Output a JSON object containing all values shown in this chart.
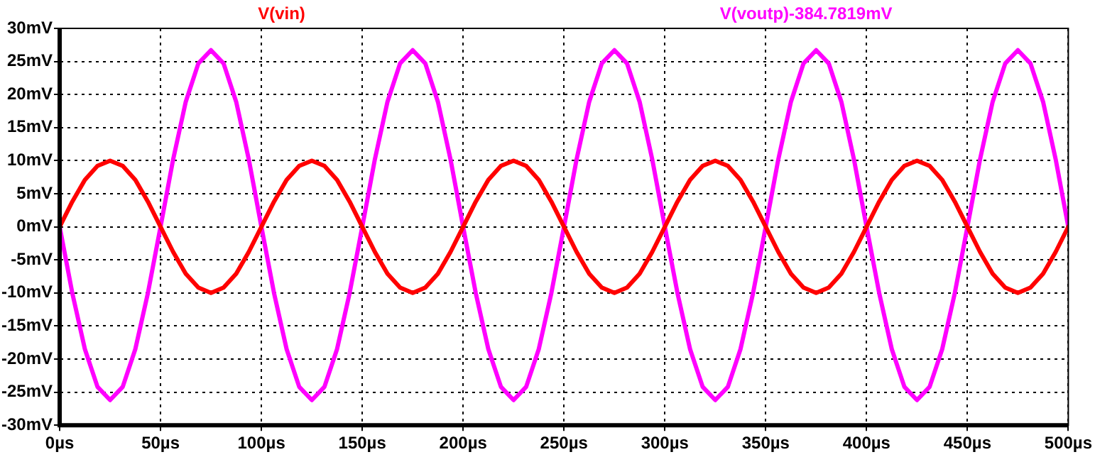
{
  "chart_data": {
    "type": "line",
    "x": [
      0,
      6.25,
      12.5,
      18.75,
      25,
      31.25,
      37.5,
      43.75,
      50,
      56.25,
      62.5,
      68.75,
      75,
      81.25,
      87.5,
      93.75,
      100,
      106.25,
      112.5,
      118.75,
      125,
      131.25,
      137.5,
      143.75,
      150,
      156.25,
      162.5,
      168.75,
      175,
      181.25,
      187.5,
      193.75,
      200,
      206.25,
      212.5,
      218.75,
      225,
      231.25,
      237.5,
      243.75,
      250,
      256.25,
      262.5,
      268.75,
      275,
      281.25,
      287.5,
      293.75,
      300,
      306.25,
      312.5,
      318.75,
      325,
      331.25,
      337.5,
      343.75,
      350,
      356.25,
      362.5,
      368.75,
      375,
      381.25,
      387.5,
      393.75,
      400,
      406.25,
      412.5,
      418.75,
      425,
      431.25,
      437.5,
      443.75,
      450,
      456.25,
      462.5,
      468.75,
      475,
      481.25,
      487.5,
      493.75,
      500
    ],
    "series": [
      {
        "name": "V(vin)",
        "color": "#ff0000",
        "values": [
          0,
          3.8,
          7.1,
          9.2,
          10,
          9.2,
          7.1,
          3.8,
          0,
          -3.8,
          -7.1,
          -9.2,
          -10,
          -9.2,
          -7.1,
          -3.8,
          0,
          3.8,
          7.1,
          9.2,
          10,
          9.2,
          7.1,
          3.8,
          0,
          -3.8,
          -7.1,
          -9.2,
          -10,
          -9.2,
          -7.1,
          -3.8,
          0,
          3.8,
          7.1,
          9.2,
          10,
          9.2,
          7.1,
          3.8,
          0,
          -3.8,
          -7.1,
          -9.2,
          -10,
          -9.2,
          -7.1,
          -3.8,
          0,
          3.8,
          7.1,
          9.2,
          10,
          9.2,
          7.1,
          3.8,
          0,
          -3.8,
          -7.1,
          -9.2,
          -10,
          -9.2,
          -7.1,
          -3.8,
          0,
          3.8,
          7.1,
          9.2,
          10,
          9.2,
          7.1,
          3.8,
          0,
          -3.8,
          -7.1,
          -9.2,
          -10,
          -9.2,
          -7.1,
          -3.8,
          0
        ]
      },
      {
        "name": "V(voutp)-384.7819mV",
        "color": "#ff00ff",
        "values": [
          0,
          -10,
          -18.5,
          -24.2,
          -26.2,
          -24.2,
          -18.5,
          -10,
          0,
          10.2,
          18.9,
          24.7,
          26.7,
          24.7,
          18.9,
          10.2,
          0,
          -10,
          -18.5,
          -24.2,
          -26.2,
          -24.2,
          -18.5,
          -10,
          0,
          10.2,
          18.9,
          24.7,
          26.7,
          24.7,
          18.9,
          10.2,
          0,
          -10,
          -18.5,
          -24.2,
          -26.2,
          -24.2,
          -18.5,
          -10,
          0,
          10.2,
          18.9,
          24.7,
          26.7,
          24.7,
          18.9,
          10.2,
          0,
          -10,
          -18.5,
          -24.2,
          -26.2,
          -24.2,
          -18.5,
          -10,
          0,
          10.2,
          18.9,
          24.7,
          26.7,
          24.7,
          18.9,
          10.2,
          0,
          -10,
          -18.5,
          -24.2,
          -26.2,
          -24.2,
          -18.5,
          -10,
          0,
          10.2,
          18.9,
          24.7,
          26.7,
          24.7,
          18.9,
          10.2,
          0
        ]
      }
    ],
    "xlim": [
      0,
      500
    ],
    "xticks": [
      {
        "value": 0,
        "label": "0µs"
      },
      {
        "value": 50,
        "label": "50µs"
      },
      {
        "value": 100,
        "label": "100µs"
      },
      {
        "value": 150,
        "label": "150µs"
      },
      {
        "value": 200,
        "label": "200µs"
      },
      {
        "value": 250,
        "label": "250µs"
      },
      {
        "value": 300,
        "label": "300µs"
      },
      {
        "value": 350,
        "label": "350µs"
      },
      {
        "value": 400,
        "label": "400µs"
      },
      {
        "value": 450,
        "label": "450µs"
      },
      {
        "value": 500,
        "label": "500µs"
      }
    ],
    "ylim": [
      -30,
      30
    ],
    "yticks": [
      {
        "value": -30,
        "label": "-30mV"
      },
      {
        "value": -25,
        "label": "-25mV"
      },
      {
        "value": -20,
        "label": "-20mV"
      },
      {
        "value": -15,
        "label": "-15mV"
      },
      {
        "value": -10,
        "label": "-10mV"
      },
      {
        "value": -5,
        "label": "-5mV"
      },
      {
        "value": 0,
        "label": "0mV"
      },
      {
        "value": 5,
        "label": "5mV"
      },
      {
        "value": 10,
        "label": "10mV"
      },
      {
        "value": 15,
        "label": "15mV"
      },
      {
        "value": 20,
        "label": "20mV"
      },
      {
        "value": 25,
        "label": "25mV"
      },
      {
        "value": 30,
        "label": "30mV"
      }
    ],
    "grid": true,
    "marker": "none",
    "line_style": "solid"
  }
}
